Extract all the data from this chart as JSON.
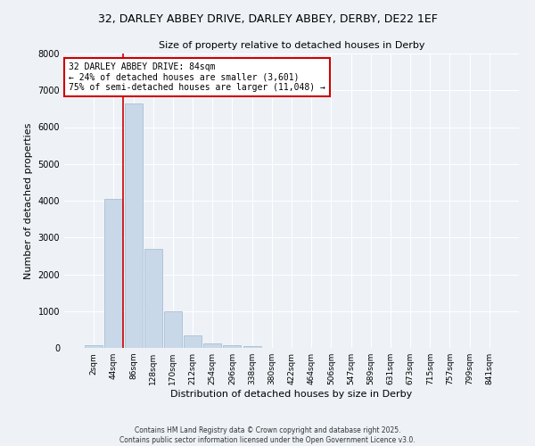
{
  "title1": "32, DARLEY ABBEY DRIVE, DARLEY ABBEY, DERBY, DE22 1EF",
  "title2": "Size of property relative to detached houses in Derby",
  "xlabel": "Distribution of detached houses by size in Derby",
  "ylabel": "Number of detached properties",
  "bar_labels": [
    "2sqm",
    "44sqm",
    "86sqm",
    "128sqm",
    "170sqm",
    "212sqm",
    "254sqm",
    "296sqm",
    "338sqm",
    "380sqm",
    "422sqm",
    "464sqm",
    "506sqm",
    "547sqm",
    "589sqm",
    "631sqm",
    "673sqm",
    "715sqm",
    "757sqm",
    "799sqm",
    "841sqm"
  ],
  "bar_heights": [
    80,
    4050,
    6650,
    2700,
    1000,
    330,
    130,
    80,
    60,
    0,
    0,
    0,
    0,
    0,
    0,
    0,
    0,
    0,
    0,
    0,
    0
  ],
  "bar_color": "#c8d8e8",
  "bar_edgecolor": "#a0b8cc",
  "ylim": [
    0,
    8000
  ],
  "yticks": [
    0,
    1000,
    2000,
    3000,
    4000,
    5000,
    6000,
    7000,
    8000
  ],
  "property_line_color": "#cc0000",
  "annotation_title": "32 DARLEY ABBEY DRIVE: 84sqm",
  "annotation_line1": "← 24% of detached houses are smaller (3,601)",
  "annotation_line2": "75% of semi-detached houses are larger (11,048) →",
  "annotation_box_color": "#cc0000",
  "background_color": "#eef2f7",
  "grid_color": "#ffffff",
  "footer1": "Contains HM Land Registry data © Crown copyright and database right 2025.",
  "footer2": "Contains public sector information licensed under the Open Government Licence v3.0."
}
